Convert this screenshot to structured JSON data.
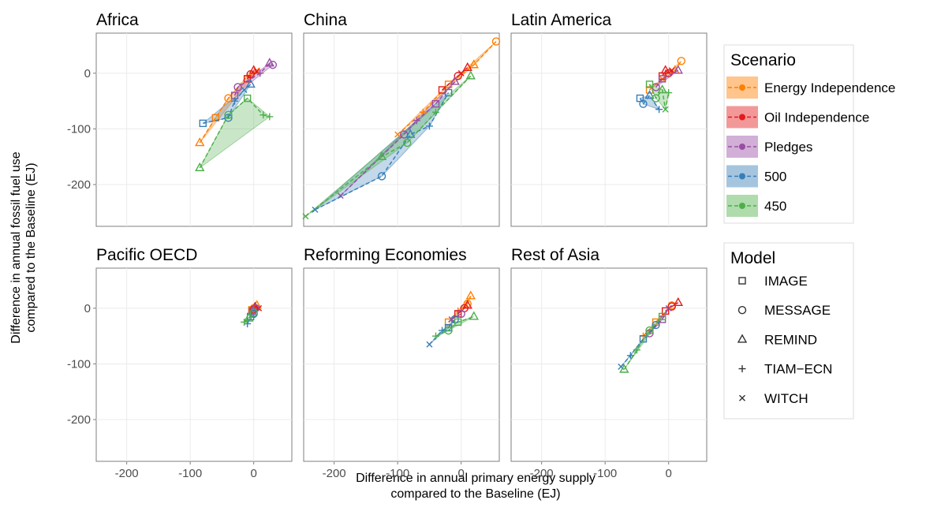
{
  "chart_data": {
    "type": "scatter",
    "x_label": [
      "Difference in annual primary energy supply",
      "compared to the Baseline (EJ)"
    ],
    "y_label": [
      "Difference in annual fossil fuel use",
      "compared to the Baseline (EJ)"
    ],
    "xlim": [
      -248,
      60
    ],
    "ylim": [
      -275,
      72
    ],
    "xticks": [
      -200,
      -100,
      0
    ],
    "yticks": [
      0,
      -100,
      -200
    ],
    "grid": true,
    "legend_title": "Scenario",
    "series": [
      {
        "name": "Energy Independence",
        "color": "#ff7f00"
      },
      {
        "name": "Oil Independence",
        "color": "#e41a1c"
      },
      {
        "name": "Pledges",
        "color": "#984ea3"
      },
      {
        "name": "500",
        "color": "#377eb8"
      },
      {
        "name": "450",
        "color": "#4daf4a"
      }
    ],
    "model_title": "Model",
    "models": [
      "IMAGE",
      "MESSAGE",
      "REMIND",
      "TIAM−ECN",
      "WITCH"
    ],
    "facets": [
      {
        "title": "Africa",
        "series": [
          {
            "x": [
              -85,
              -60,
              -40,
              -10,
              5
            ],
            "y": [
              -125,
              -80,
              -45,
              -5,
              5
            ],
            "models": [
              "REMIND",
              "IMAGE",
              "MESSAGE",
              "TIAM−ECN",
              "WITCH"
            ]
          },
          {
            "x": [
              -10,
              -5,
              0,
              5
            ],
            "y": [
              -10,
              -2,
              5,
              3
            ],
            "models": [
              "IMAGE",
              "MESSAGE",
              "REMIND",
              "WITCH"
            ]
          },
          {
            "x": [
              -30,
              -25,
              10,
              25,
              30
            ],
            "y": [
              -40,
              -25,
              0,
              18,
              15
            ],
            "models": [
              "IMAGE",
              "MESSAGE",
              "TIAM−ECN",
              "REMIND",
              "MESSAGE"
            ]
          },
          {
            "x": [
              -80,
              -40,
              -30,
              -15,
              -5
            ],
            "y": [
              -90,
              -80,
              -50,
              -30,
              -20
            ],
            "models": [
              "IMAGE",
              "MESSAGE",
              "TIAM−ECN",
              "WITCH",
              "REMIND"
            ]
          },
          {
            "x": [
              -85,
              -40,
              -10,
              15,
              25
            ],
            "y": [
              -170,
              -75,
              -45,
              -75,
              -78
            ],
            "models": [
              "REMIND",
              "MESSAGE",
              "IMAGE",
              "TIAM−ECN",
              "TIAM−ECN"
            ]
          }
        ]
      },
      {
        "title": "China",
        "series": [
          {
            "x": [
              -100,
              -60,
              -20,
              20,
              55
            ],
            "y": [
              -110,
              -70,
              -20,
              15,
              57
            ],
            "models": [
              "WITCH",
              "TIAM−ECN",
              "IMAGE",
              "REMIND",
              "MESSAGE"
            ]
          },
          {
            "x": [
              -30,
              -5,
              0,
              10
            ],
            "y": [
              -30,
              -5,
              0,
              10
            ],
            "models": [
              "IMAGE",
              "MESSAGE",
              "WITCH",
              "REMIND"
            ]
          },
          {
            "x": [
              -190,
              -90,
              -70,
              -40,
              -10
            ],
            "y": [
              -220,
              -110,
              -85,
              -55,
              -15
            ],
            "models": [
              "WITCH",
              "MESSAGE",
              "TIAM−ECN",
              "IMAGE",
              "REMIND"
            ]
          },
          {
            "x": [
              -230,
              -125,
              -80,
              -50,
              -20
            ],
            "y": [
              -245,
              -185,
              -110,
              -95,
              -35
            ],
            "models": [
              "WITCH",
              "MESSAGE",
              "REMIND",
              "TIAM−ECN",
              "IMAGE"
            ]
          },
          {
            "x": [
              -245,
              -125,
              -85,
              -40,
              15
            ],
            "y": [
              -257,
              -150,
              -125,
              -70,
              -5
            ],
            "models": [
              "WITCH",
              "REMIND",
              "MESSAGE",
              "TIAM−ECN",
              "REMIND"
            ]
          }
        ]
      },
      {
        "title": "Latin America",
        "series": [
          {
            "x": [
              -30,
              -10,
              10,
              20
            ],
            "y": [
              -30,
              -10,
              5,
              22
            ],
            "models": [
              "IMAGE",
              "WITCH",
              "REMIND",
              "MESSAGE"
            ]
          },
          {
            "x": [
              -10,
              -5,
              0,
              5
            ],
            "y": [
              -5,
              5,
              0,
              5
            ],
            "models": [
              "IMAGE",
              "REMIND",
              "MESSAGE",
              "WITCH"
            ]
          },
          {
            "x": [
              -20,
              -10,
              15
            ],
            "y": [
              -25,
              -10,
              5
            ],
            "models": [
              "MESSAGE",
              "IMAGE",
              "REMIND"
            ]
          },
          {
            "x": [
              -45,
              -40,
              -30,
              -15
            ],
            "y": [
              -45,
              -55,
              -40,
              -65
            ],
            "models": [
              "IMAGE",
              "MESSAGE",
              "REMIND",
              "TIAM−ECN"
            ]
          },
          {
            "x": [
              -30,
              -20,
              -10,
              -5,
              0
            ],
            "y": [
              -20,
              -45,
              -30,
              -65,
              -35
            ],
            "models": [
              "IMAGE",
              "MESSAGE",
              "REMIND",
              "WITCH",
              "TIAM−ECN"
            ]
          }
        ]
      },
      {
        "title": "Pacific OECD",
        "series": [
          {
            "x": [
              -3,
              0,
              5
            ],
            "y": [
              -3,
              0,
              5
            ],
            "models": [
              "IMAGE",
              "MESSAGE",
              "REMIND"
            ]
          },
          {
            "x": [
              0,
              2,
              8
            ],
            "y": [
              -2,
              2,
              0
            ],
            "models": [
              "MESSAGE",
              "REMIND",
              "WITCH"
            ]
          },
          {
            "x": [
              -2,
              3
            ],
            "y": [
              -5,
              0
            ],
            "models": [
              "IMAGE",
              "MESSAGE"
            ]
          },
          {
            "x": [
              -10,
              -5,
              0
            ],
            "y": [
              -28,
              -15,
              -10
            ],
            "models": [
              "TIAM−ECN",
              "IMAGE",
              "MESSAGE"
            ]
          },
          {
            "x": [
              -15,
              -8,
              0
            ],
            "y": [
              -25,
              -18,
              -8
            ],
            "models": [
              "TIAM−ECN",
              "REMIND",
              "MESSAGE"
            ]
          }
        ]
      },
      {
        "title": "Reforming Economies",
        "series": [
          {
            "x": [
              -20,
              -5,
              10,
              15
            ],
            "y": [
              -25,
              -5,
              8,
              22
            ],
            "models": [
              "IMAGE",
              "TIAM−ECN",
              "MESSAGE",
              "REMIND"
            ]
          },
          {
            "x": [
              -5,
              5,
              10
            ],
            "y": [
              -10,
              0,
              5
            ],
            "models": [
              "IMAGE",
              "MESSAGE",
              "REMIND"
            ]
          },
          {
            "x": [
              -15,
              0
            ],
            "y": [
              -20,
              -10
            ],
            "models": [
              "WITCH",
              "MESSAGE"
            ]
          },
          {
            "x": [
              -50,
              -30,
              -20,
              -10
            ],
            "y": [
              -65,
              -40,
              -35,
              -20
            ],
            "models": [
              "WITCH",
              "TIAM−ECN",
              "IMAGE",
              "MESSAGE"
            ]
          },
          {
            "x": [
              -40,
              -20,
              -5,
              20
            ],
            "y": [
              -50,
              -40,
              -25,
              -15
            ],
            "models": [
              "TIAM−ECN",
              "MESSAGE",
              "IMAGE",
              "REMIND"
            ]
          }
        ]
      },
      {
        "title": "Rest of Asia",
        "series": [
          {
            "x": [
              -40,
              -20,
              5
            ],
            "y": [
              -50,
              -25,
              5
            ],
            "models": [
              "TIAM−ECN",
              "IMAGE",
              "MESSAGE"
            ]
          },
          {
            "x": [
              -5,
              5,
              15
            ],
            "y": [
              -5,
              3,
              10
            ],
            "models": [
              "IMAGE",
              "MESSAGE",
              "REMIND"
            ]
          },
          {
            "x": [
              -30,
              -10,
              0
            ],
            "y": [
              -45,
              -20,
              0
            ],
            "models": [
              "MESSAGE",
              "IMAGE",
              "WITCH"
            ]
          },
          {
            "x": [
              -75,
              -60,
              -40,
              -20
            ],
            "y": [
              -105,
              -85,
              -55,
              -30
            ],
            "models": [
              "WITCH",
              "TIAM−ECN",
              "IMAGE",
              "MESSAGE"
            ]
          },
          {
            "x": [
              -70,
              -50,
              -30,
              -10
            ],
            "y": [
              -110,
              -75,
              -40,
              -15
            ],
            "models": [
              "REMIND",
              "TIAM−ECN",
              "MESSAGE",
              "IMAGE"
            ]
          }
        ]
      }
    ]
  }
}
